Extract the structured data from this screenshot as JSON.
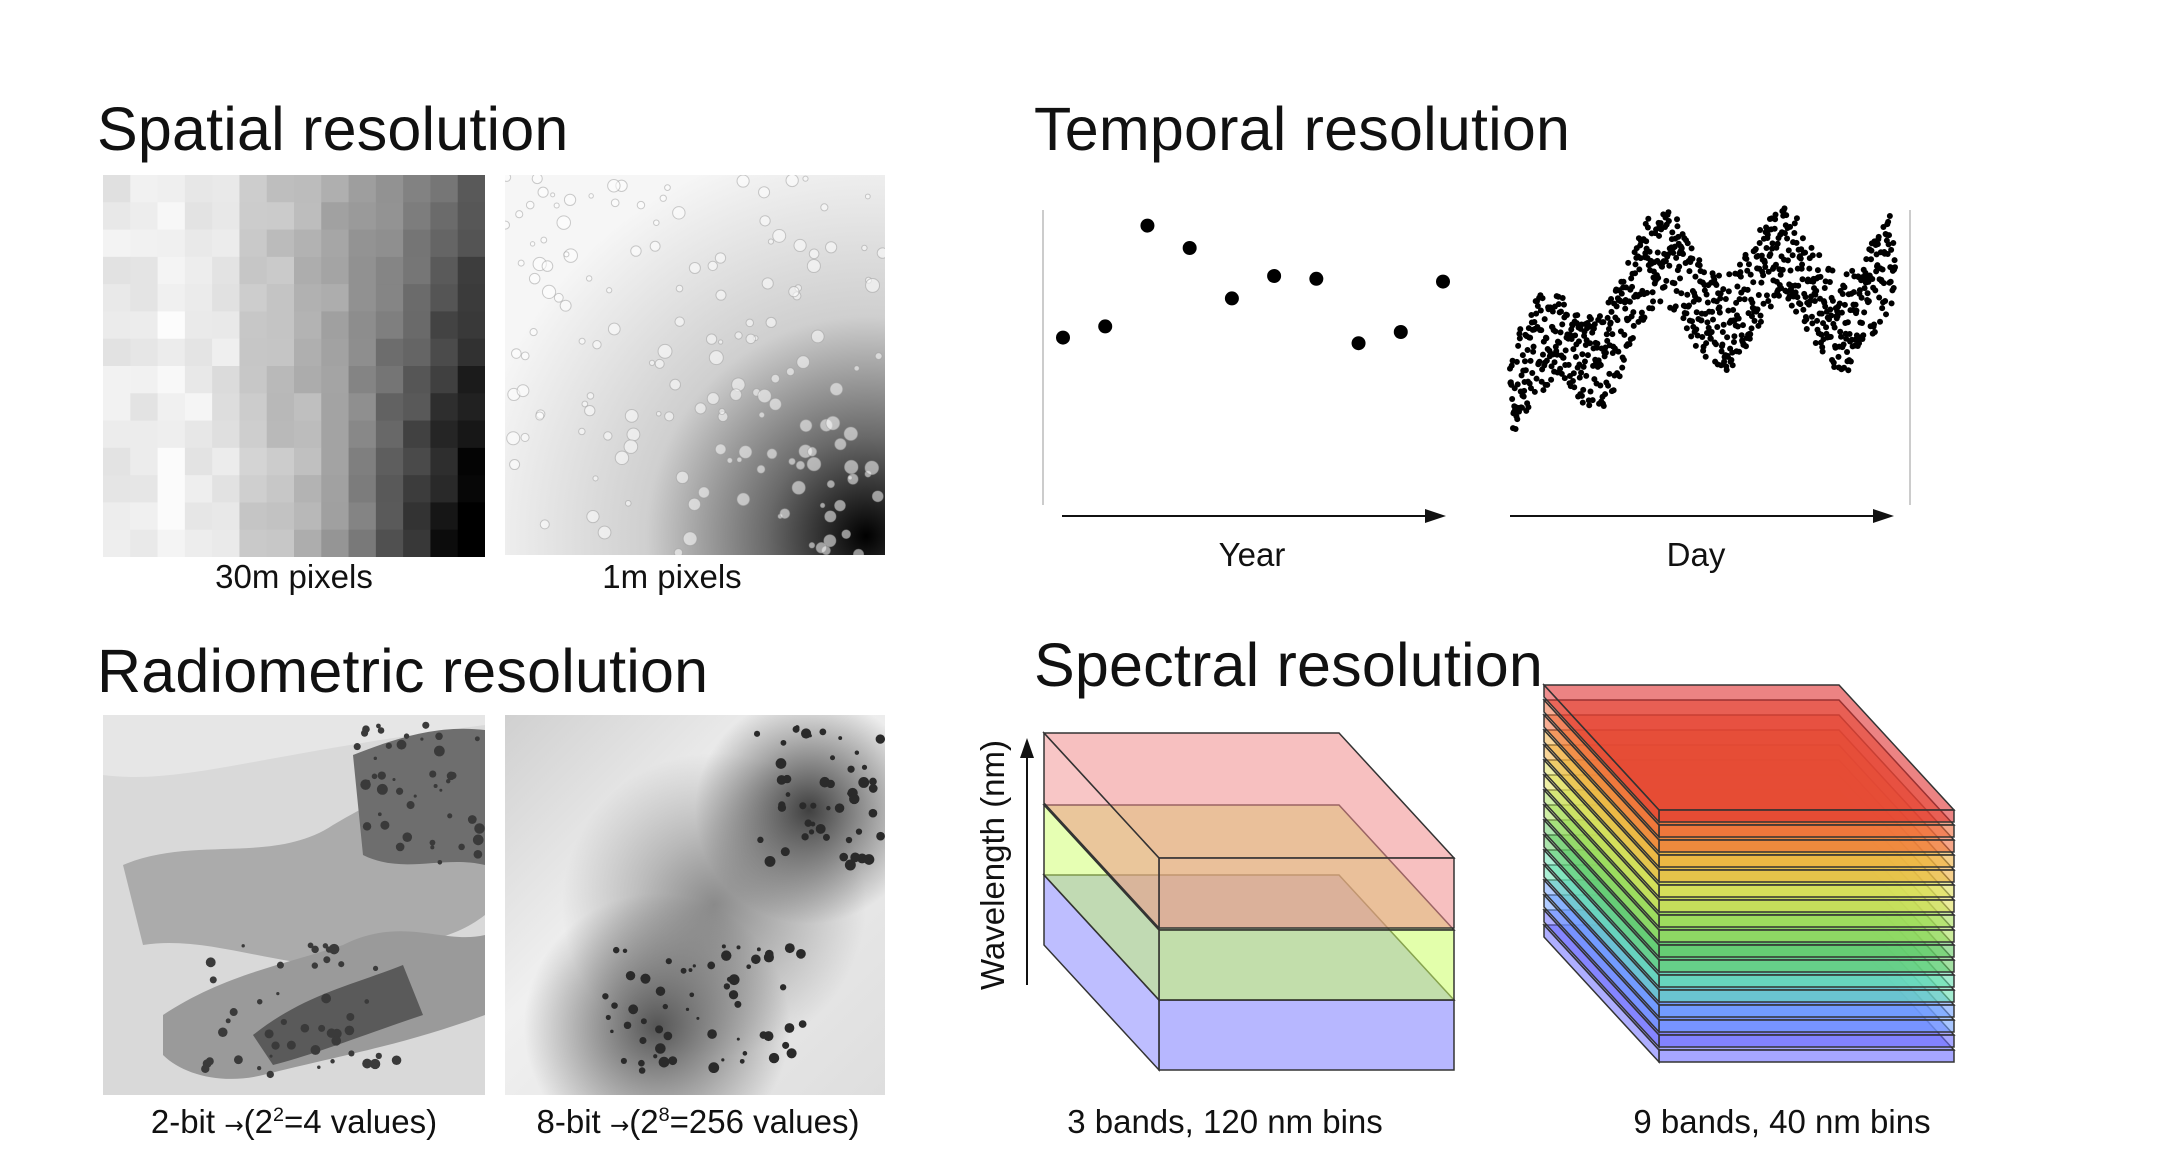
{
  "spatial": {
    "title": "Spatial resolution",
    "caption_30m": "30m pixels",
    "caption_1m": "1m pixels"
  },
  "temporal": {
    "title": "Temporal resolution",
    "xlabel_year": "Year",
    "xlabel_day": "Day"
  },
  "radiometric": {
    "title": "Radiometric resolution",
    "cap2_pre": "2-bit ",
    "cap2_arrow": "→",
    "cap2_open": "(2",
    "cap2_exp": "2",
    "cap2_rest": "=4 values)",
    "cap8_pre": "8-bit ",
    "cap8_arrow": "→",
    "cap8_open": "(2",
    "cap8_exp": "8",
    "cap8_rest": "=256 values)"
  },
  "spectral": {
    "title": "Spectral resolution",
    "ylabel": "Wavelength (nm)",
    "caption_3": "3 bands, 120 nm bins",
    "caption_9": "9 bands, 40 nm bins",
    "colors_3": [
      "#7b7bff",
      "#ccff66",
      "#f08c8c"
    ],
    "colors_9": [
      "#6a6aff",
      "#6fa0ff",
      "#66e0b0",
      "#66cc66",
      "#a8e05a",
      "#e0e05a",
      "#f0b040",
      "#f06a3a",
      "#e03030"
    ]
  },
  "chart_data": [
    {
      "type": "scatter",
      "xlabel": "Year",
      "y": [
        0.58,
        0.62,
        0.98,
        0.9,
        0.72,
        0.8,
        0.79,
        0.56,
        0.6,
        0.78
      ]
    },
    {
      "type": "scatter",
      "xlabel": "Day",
      "n_points": 900
    }
  ]
}
